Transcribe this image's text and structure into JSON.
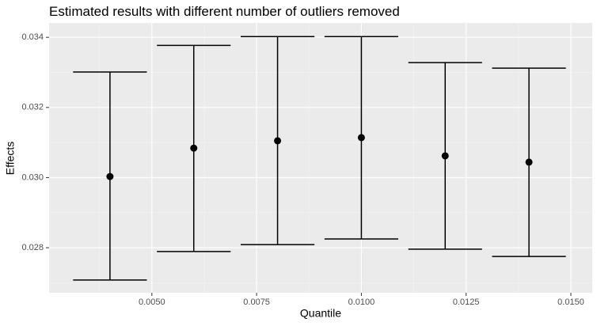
{
  "chart_data": {
    "type": "errorbar",
    "title": "Estimated results with different number of outliers removed",
    "x_label": "Quantile",
    "y_label": "Effects",
    "x": [
      0.004,
      0.006,
      0.008,
      0.01,
      0.012,
      0.014
    ],
    "values": [
      0.03003,
      0.03084,
      0.03105,
      0.03114,
      0.03062,
      0.03044
    ],
    "lower": [
      0.02708,
      0.02789,
      0.02809,
      0.02825,
      0.02796,
      0.02775
    ],
    "upper": [
      0.03301,
      0.03377,
      0.03402,
      0.03402,
      0.03328,
      0.03312
    ],
    "color": "#000000",
    "xlim": [
      0.002547,
      0.01551
    ],
    "ylim": [
      0.026715,
      0.03441
    ],
    "xticks": [
      {
        "value": 0.005,
        "label": "0.0050"
      },
      {
        "value": 0.0075,
        "label": "0.0075"
      },
      {
        "value": 0.01,
        "label": "0.0100"
      },
      {
        "value": 0.0125,
        "label": "0.0125"
      },
      {
        "value": 0.015,
        "label": "0.0150"
      }
    ],
    "yticks": [
      0.028,
      {
        "value": 0.03,
        "label": "0.030"
      },
      0.032,
      0.034
    ],
    "grid": true
  }
}
